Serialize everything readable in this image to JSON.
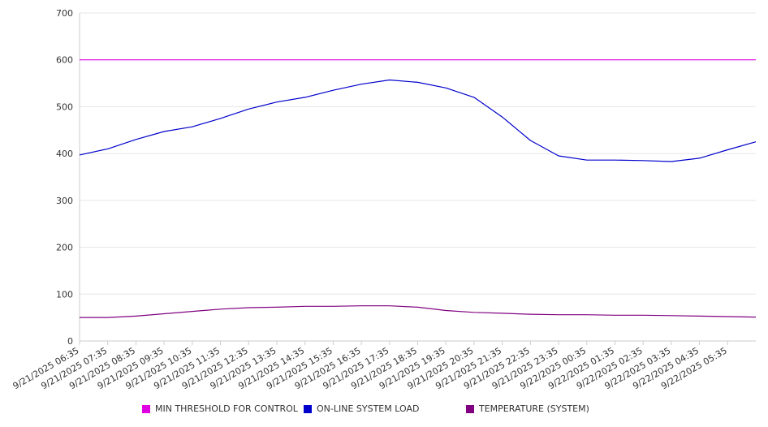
{
  "chart_data": {
    "type": "line",
    "ylim": [
      0,
      700
    ],
    "yticks": [
      0,
      100,
      200,
      300,
      400,
      500,
      600,
      700
    ],
    "x_tick_labels": [
      "9/21/2025 06:35",
      "9/21/2025 07:35",
      "9/21/2025 08:35",
      "9/21/2025 09:35",
      "9/21/2025 10:35",
      "9/21/2025 11:35",
      "9/21/2025 12:35",
      "9/21/2025 13:35",
      "9/21/2025 14:35",
      "9/21/2025 15:35",
      "9/21/2025 16:35",
      "9/21/2025 17:35",
      "9/21/2025 18:35",
      "9/21/2025 19:35",
      "9/21/2025 20:35",
      "9/21/2025 21:35",
      "9/21/2025 22:35",
      "9/21/2025 23:35",
      "9/22/2025 00:35",
      "9/22/2025 01:35",
      "9/22/2025 02:35",
      "9/22/2025 03:35",
      "9/22/2025 04:35",
      "9/22/2025 05:35"
    ],
    "grid": true,
    "legend_position": "bottom",
    "series": [
      {
        "name": "MIN THRESHOLD FOR CONTROL",
        "color": "#e100e1",
        "values": [
          600,
          600,
          600,
          600,
          600,
          600,
          600,
          600,
          600,
          600,
          600,
          600,
          600,
          600,
          600,
          600,
          600,
          600,
          600,
          600,
          600,
          600,
          600,
          600,
          600
        ]
      },
      {
        "name": "ON-LINE SYSTEM LOAD",
        "color": "#0000cc",
        "values": [
          397,
          410,
          430,
          447,
          457,
          475,
          495,
          510,
          520,
          535,
          548,
          557,
          552,
          540,
          520,
          478,
          428,
          395,
          386,
          386,
          385,
          383,
          390,
          408,
          425
        ]
      },
      {
        "name": "TEMPERATURE (SYSTEM)",
        "color": "#800080",
        "values": [
          50,
          50,
          53,
          58,
          63,
          68,
          71,
          72,
          74,
          74,
          75,
          75,
          72,
          65,
          61,
          59,
          57,
          56,
          56,
          55,
          55,
          54,
          53,
          52,
          51
        ]
      }
    ]
  }
}
